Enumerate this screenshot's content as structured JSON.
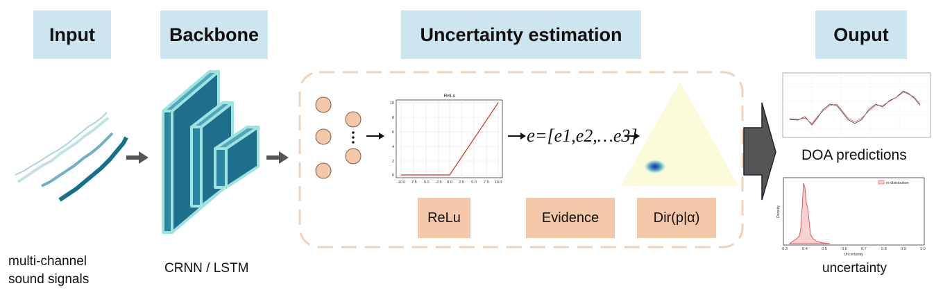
{
  "headers": {
    "input": "Input",
    "backbone": "Backbone",
    "uncertainty": "Uncertainty estimation",
    "output": "Ouput"
  },
  "input_caption_line1": "multi-channel",
  "input_caption_line2": "sound signals",
  "backbone_caption": "CRNN / LSTM",
  "tags": {
    "relu": "ReLu",
    "evidence": "Evidence",
    "dirichlet": "Dir(p|α)"
  },
  "relu_plot": {
    "title": "ReLu",
    "xticks": [
      "-10.0",
      "-7.5",
      "-5.0",
      "-2.5",
      "0.0",
      "2.5",
      "5.0",
      "7.5",
      "10.0"
    ],
    "yticks": [
      "0",
      "2",
      "4",
      "6",
      "8",
      "10"
    ]
  },
  "evidence_formula": {
    "lhs": "e",
    "rhs": "=[e1,e2,…e3]"
  },
  "output_captions": {
    "doa": "DOA predictions",
    "uncertainty": "uncertainty"
  },
  "hist_plot": {
    "legend": "in-distribution",
    "xlabel": "Uncertainty",
    "ylabel": "Density",
    "xticks": [
      "0.3",
      "0.4",
      "0.5",
      "0.6",
      "0.7",
      "0.8",
      "0.9",
      "1.0"
    ]
  },
  "colors": {
    "header_bg": "#cde5ee",
    "tag_bg": "#f3c8a8",
    "backbone_face": "#1d6f8c",
    "backbone_edge": "#9fe3df",
    "neuron": "#f3c8a8",
    "dashed_box": "#f0d2bb",
    "big_arrow": "#555555"
  }
}
